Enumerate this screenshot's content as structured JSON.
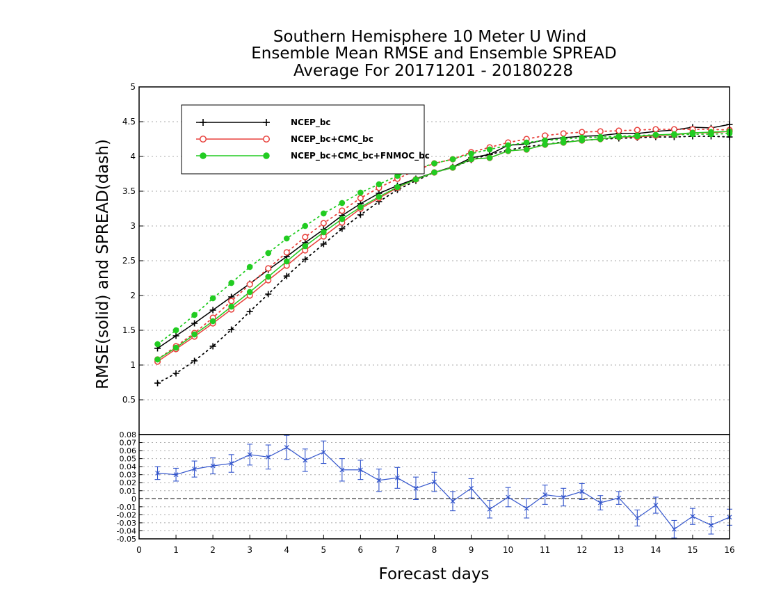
{
  "chart_data": [
    {
      "type": "line",
      "title_lines": [
        "Southern Hemisphere 10 Meter U Wind",
        "Ensemble Mean RMSE and Ensemble SPREAD",
        "Average For 20171201 - 20180228"
      ],
      "xlabel": "",
      "ylabel": "RMSE(solid) and SPREAD(dash)",
      "xlim": [
        0,
        16
      ],
      "ylim": [
        0,
        5
      ],
      "yticks": [
        "0.5",
        "1",
        "1.5",
        "2",
        "2.5",
        "3",
        "3.5",
        "4",
        "4.5",
        "5"
      ],
      "grid": "dotted-horizontal",
      "legend_position": "top-left",
      "x": [
        0.5,
        1.0,
        1.5,
        2.0,
        2.5,
        3.0,
        3.5,
        4.0,
        4.5,
        5.0,
        5.5,
        6.0,
        6.5,
        7.0,
        7.5,
        8.0,
        8.5,
        9.0,
        9.5,
        10.0,
        10.5,
        11.0,
        11.5,
        12.0,
        12.5,
        13.0,
        13.5,
        14.0,
        14.5,
        15.0,
        15.5,
        16.0
      ],
      "series": [
        {
          "name": "NCEP_bc",
          "color": "#000000",
          "marker": "plus",
          "rmse": [
            1.24,
            1.42,
            1.6,
            1.79,
            1.98,
            2.17,
            2.37,
            2.56,
            2.76,
            2.95,
            3.15,
            3.32,
            3.47,
            3.58,
            3.68,
            3.77,
            3.85,
            3.98,
            4.03,
            4.16,
            4.18,
            4.24,
            4.27,
            4.29,
            4.3,
            4.33,
            4.33,
            4.36,
            4.38,
            4.42,
            4.41,
            4.46
          ],
          "spread": [
            0.74,
            0.88,
            1.06,
            1.27,
            1.51,
            1.77,
            2.02,
            2.28,
            2.52,
            2.74,
            2.96,
            3.16,
            3.35,
            3.52,
            3.65,
            3.77,
            3.84,
            3.95,
            4.03,
            4.09,
            4.14,
            4.17,
            4.21,
            4.23,
            4.25,
            4.26,
            4.27,
            4.28,
            4.28,
            4.29,
            4.29,
            4.28
          ]
        },
        {
          "name": "NCEP_bc+CMC_bc",
          "color": "#e8413c",
          "marker": "open-circle",
          "rmse": [
            1.05,
            1.23,
            1.41,
            1.6,
            1.8,
            2.0,
            2.22,
            2.43,
            2.65,
            2.85,
            3.05,
            3.25,
            3.4,
            3.55,
            3.67,
            3.77,
            3.84,
            3.96,
            3.98,
            4.08,
            4.1,
            4.17,
            4.2,
            4.23,
            4.25,
            4.28,
            4.28,
            4.3,
            4.31,
            4.34,
            4.34,
            4.36
          ],
          "spread": [
            1.08,
            1.27,
            1.46,
            1.68,
            1.92,
            2.16,
            2.39,
            2.62,
            2.84,
            3.04,
            3.22,
            3.4,
            3.55,
            3.68,
            3.8,
            3.9,
            3.96,
            4.06,
            4.13,
            4.2,
            4.25,
            4.3,
            4.33,
            4.35,
            4.36,
            4.37,
            4.38,
            4.39,
            4.39,
            4.39,
            4.39,
            4.38
          ]
        },
        {
          "name": "NCEP_bc+CMC_bc+FNMOC_bc",
          "color": "#22cc22",
          "marker": "filled-circle",
          "rmse": [
            1.08,
            1.25,
            1.44,
            1.63,
            1.84,
            2.05,
            2.27,
            2.49,
            2.71,
            2.91,
            3.1,
            3.27,
            3.42,
            3.56,
            3.67,
            3.77,
            3.84,
            3.96,
            3.98,
            4.08,
            4.1,
            4.17,
            4.2,
            4.23,
            4.25,
            4.28,
            4.29,
            4.31,
            4.32,
            4.34,
            4.35,
            4.36
          ],
          "spread": [
            1.3,
            1.5,
            1.72,
            1.96,
            2.18,
            2.41,
            2.61,
            2.82,
            3.0,
            3.18,
            3.33,
            3.48,
            3.6,
            3.72,
            3.82,
            3.9,
            3.96,
            4.04,
            4.1,
            4.16,
            4.2,
            4.23,
            4.25,
            4.27,
            4.28,
            4.29,
            4.3,
            4.31,
            4.31,
            4.32,
            4.32,
            4.33
          ]
        }
      ]
    },
    {
      "type": "line",
      "xlabel": "Forecast days",
      "xticks": [
        "0",
        "1",
        "2",
        "3",
        "4",
        "5",
        "6",
        "7",
        "8",
        "9",
        "10",
        "11",
        "12",
        "13",
        "14",
        "15",
        "16"
      ],
      "xlim": [
        0,
        16
      ],
      "ylim": [
        -0.05,
        0.08
      ],
      "yticks": [
        "-0.05",
        "-0.04",
        "-0.03",
        "-0.02",
        "-0.01",
        "0",
        "0.01",
        "0.02",
        "0.03",
        "0.04",
        "0.05",
        "0.06",
        "0.07",
        "0.08"
      ],
      "grid": "dotted-horizontal",
      "zero_line": "dashed",
      "series": [
        {
          "color": "#3355cc",
          "marker": "x",
          "x": [
            0.5,
            1.0,
            1.5,
            2.0,
            2.5,
            3.0,
            3.5,
            4.0,
            4.5,
            5.0,
            5.5,
            6.0,
            6.5,
            7.0,
            7.5,
            8.0,
            8.5,
            9.0,
            9.5,
            10.0,
            10.5,
            11.0,
            11.5,
            12.0,
            12.5,
            13.0,
            13.5,
            14.0,
            14.5,
            15.0,
            15.5,
            16.0
          ],
          "values": [
            0.032,
            0.03,
            0.037,
            0.041,
            0.044,
            0.055,
            0.052,
            0.064,
            0.048,
            0.058,
            0.036,
            0.036,
            0.023,
            0.026,
            0.013,
            0.021,
            -0.003,
            0.013,
            -0.013,
            0.002,
            -0.012,
            0.005,
            0.002,
            0.009,
            -0.005,
            0.001,
            -0.024,
            -0.008,
            -0.038,
            -0.022,
            -0.033,
            -0.023
          ],
          "error": [
            0.008,
            0.008,
            0.01,
            0.01,
            0.011,
            0.013,
            0.015,
            0.015,
            0.014,
            0.014,
            0.014,
            0.012,
            0.014,
            0.013,
            0.014,
            0.012,
            0.012,
            0.012,
            0.011,
            0.012,
            0.012,
            0.012,
            0.011,
            0.01,
            0.009,
            0.008,
            0.01,
            0.01,
            0.011,
            0.01,
            0.011,
            0.01
          ]
        }
      ]
    }
  ]
}
